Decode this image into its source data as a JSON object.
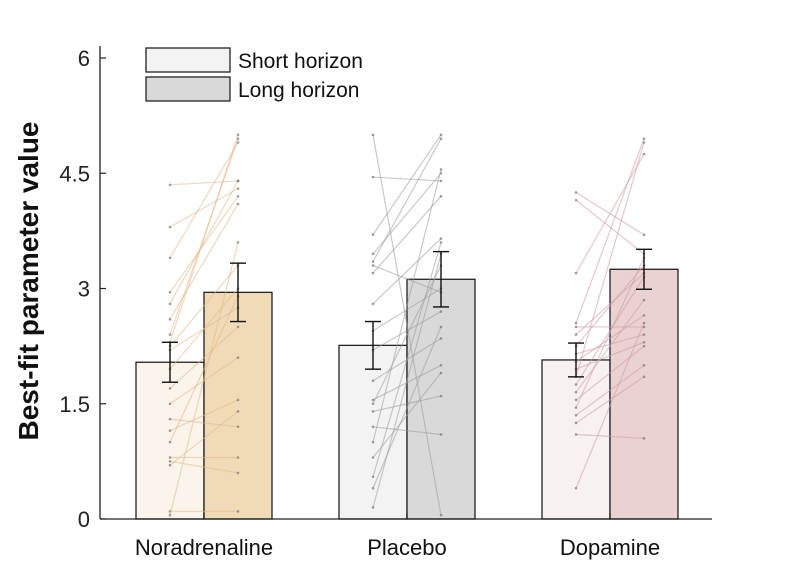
{
  "chart_data": {
    "type": "bar",
    "title": "",
    "xlabel": "",
    "ylabel": "Best-fit parameter value",
    "ylim": [
      0,
      6
    ],
    "yticks": [
      "0",
      "1.5",
      "3",
      "4.5",
      "6"
    ],
    "ytick_values": [
      0,
      1.5,
      3,
      4.5,
      6
    ],
    "grid": false,
    "legend_position": "top-left",
    "categories": [
      "Noradrenaline",
      "Placebo",
      "Dopamine"
    ],
    "series": [
      {
        "name": "Short horizon",
        "values": [
          2.04,
          2.26,
          2.07
        ],
        "error": [
          0.26,
          0.31,
          0.22
        ]
      },
      {
        "name": "Long horizon",
        "values": [
          2.95,
          3.12,
          3.25
        ],
        "error": [
          0.38,
          0.36,
          0.26
        ]
      }
    ],
    "colors": {
      "short": [
        "#faf4ea",
        "#f3f3f3",
        "#f7f1f1"
      ],
      "long": [
        "#f0dbb6",
        "#d9d9d9",
        "#ead2d3"
      ],
      "lines": [
        "#e3b888",
        "#9d9d9d",
        "#cf9aa2"
      ],
      "legend_short": "#f3f3f3",
      "legend_long": "#d9d9d9"
    },
    "individual_pairs": [
      [
        [
          4.35,
          4.4
        ],
        [
          3.8,
          4.3
        ],
        [
          3.4,
          4.9
        ],
        [
          2.95,
          4.2
        ],
        [
          2.8,
          4.4
        ],
        [
          2.6,
          4.1
        ],
        [
          2.4,
          4.95
        ],
        [
          2.3,
          5.0
        ],
        [
          2.25,
          3.3
        ],
        [
          2.2,
          2.75
        ],
        [
          1.95,
          3.0
        ],
        [
          1.7,
          2.5
        ],
        [
          1.5,
          2.1
        ],
        [
          1.3,
          1.2
        ],
        [
          1.15,
          1.55
        ],
        [
          1.0,
          2.9
        ],
        [
          0.8,
          0.8
        ],
        [
          0.75,
          0.6
        ],
        [
          0.7,
          1.4
        ],
        [
          0.1,
          0.1
        ],
        [
          0.05,
          3.6
        ]
      ],
      [
        [
          5.0,
          0.05
        ],
        [
          4.45,
          4.4
        ],
        [
          3.7,
          5.0
        ],
        [
          3.45,
          4.5
        ],
        [
          3.35,
          4.95
        ],
        [
          3.3,
          2.95
        ],
        [
          3.2,
          4.2
        ],
        [
          2.8,
          3.65
        ],
        [
          2.45,
          3.0
        ],
        [
          2.2,
          2.7
        ],
        [
          1.8,
          2.35
        ],
        [
          1.55,
          2.0
        ],
        [
          1.5,
          3.3
        ],
        [
          1.4,
          1.6
        ],
        [
          1.2,
          1.1
        ],
        [
          1.0,
          4.55
        ],
        [
          0.8,
          1.9
        ],
        [
          0.55,
          3.6
        ],
        [
          0.4,
          2.5
        ],
        [
          0.15,
          3.45
        ]
      ],
      [
        [
          4.25,
          3.7
        ],
        [
          4.15,
          3.45
        ],
        [
          3.2,
          4.75
        ],
        [
          2.55,
          4.95
        ],
        [
          2.5,
          2.5
        ],
        [
          2.4,
          3.2
        ],
        [
          2.25,
          3.3
        ],
        [
          2.15,
          2.4
        ],
        [
          2.05,
          2.65
        ],
        [
          1.95,
          2.3
        ],
        [
          1.85,
          4.9
        ],
        [
          1.75,
          3.15
        ],
        [
          1.65,
          2.85
        ],
        [
          1.55,
          2.25
        ],
        [
          1.45,
          3.4
        ],
        [
          1.35,
          2.0
        ],
        [
          1.25,
          1.85
        ],
        [
          1.1,
          1.05
        ],
        [
          0.4,
          2.55
        ]
      ]
    ]
  }
}
